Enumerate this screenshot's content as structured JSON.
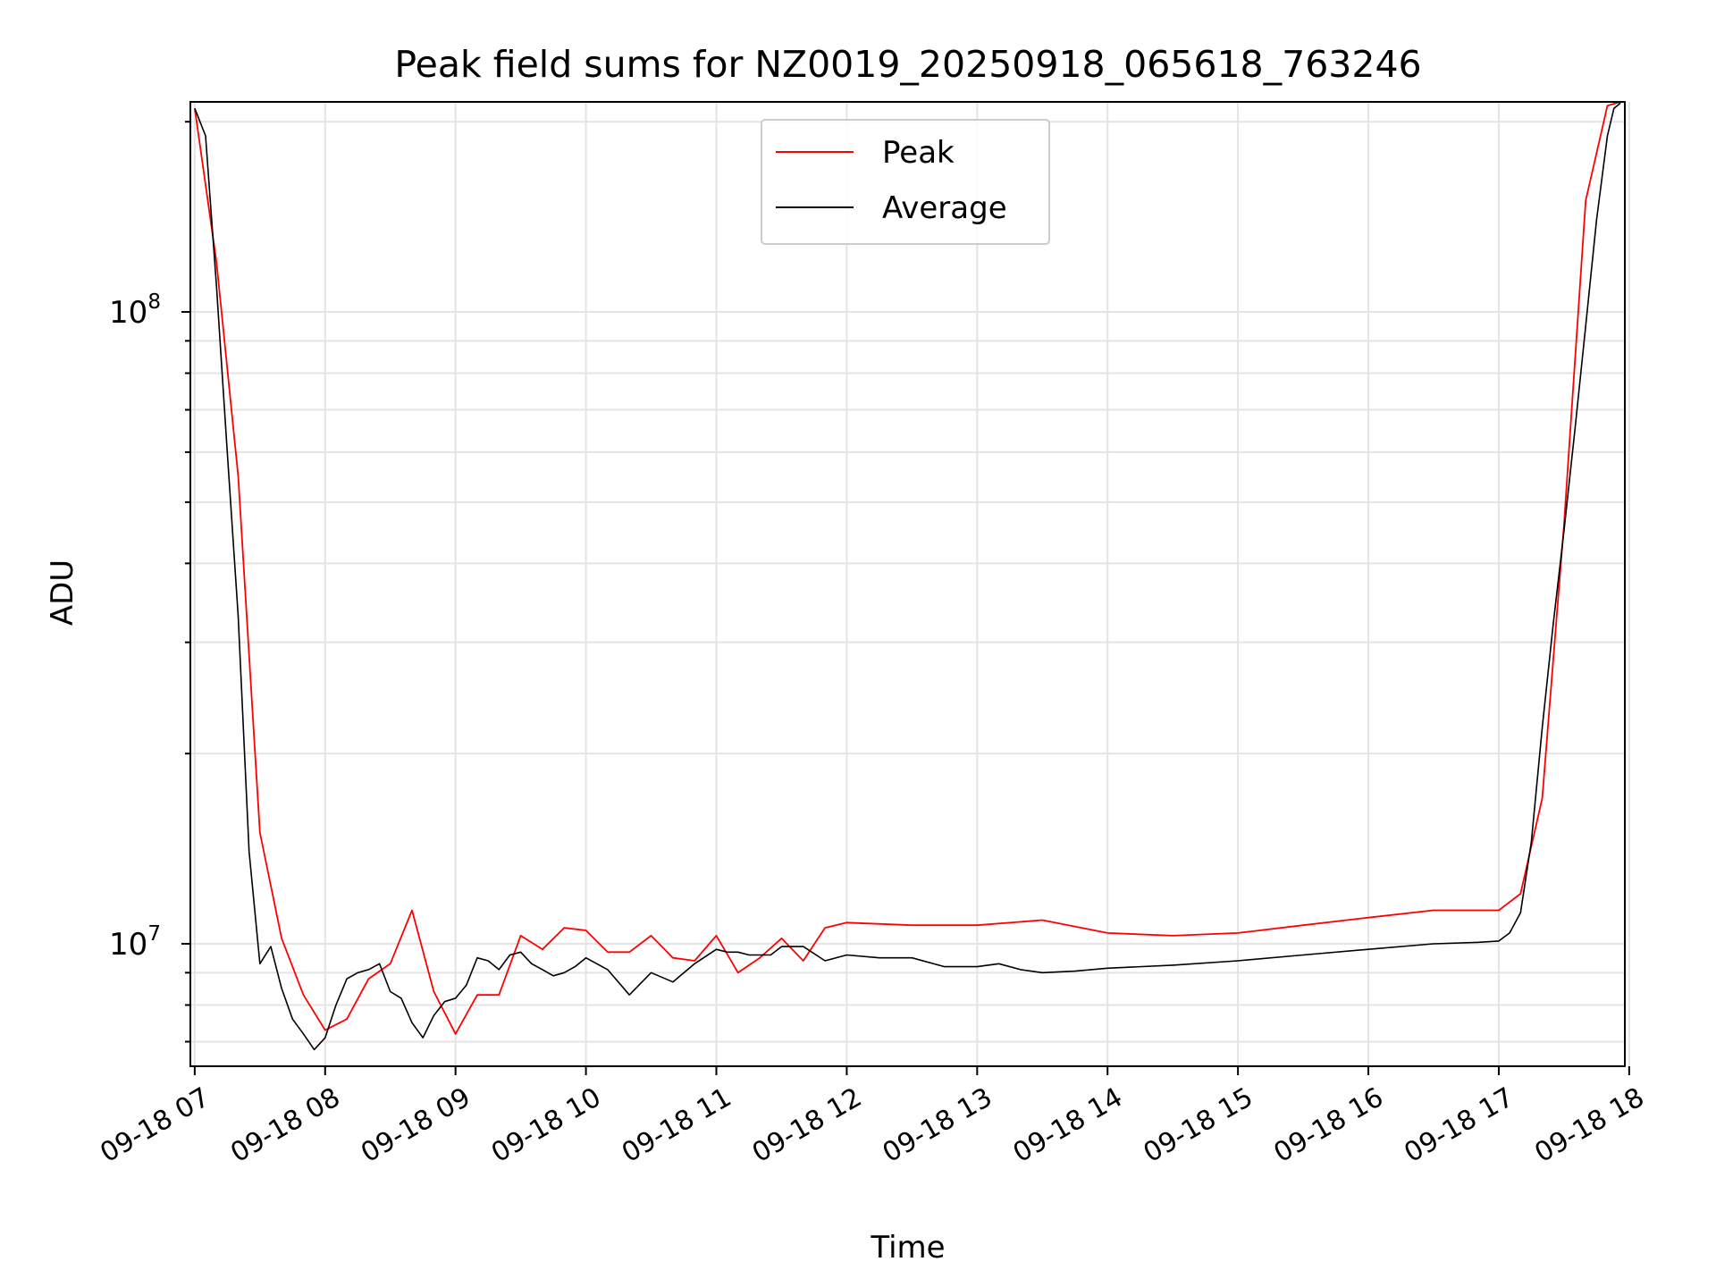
{
  "chart_data": {
    "type": "line",
    "title": "Peak field sums for NZ0019_20250918_065618_763246",
    "xlabel": "Time",
    "ylabel": "ADU",
    "yscale": "log",
    "grid": true,
    "legend_position": "upper center",
    "x_range": [
      "2025-09-18 06:58",
      "2025-09-18 17:58"
    ],
    "y_range": [
      6400000,
      215000000
    ],
    "x_ticks": [
      "09-18 07",
      "09-18 08",
      "09-18 09",
      "09-18 10",
      "09-18 11",
      "09-18 12",
      "09-18 13",
      "09-18 14",
      "09-18 15",
      "09-18 16",
      "09-18 17",
      "09-18 18"
    ],
    "y_tick_labels": [
      {
        "value": 10000000,
        "base": "10",
        "exp": "7"
      },
      {
        "value": 100000000,
        "base": "10",
        "exp": "8"
      }
    ],
    "series": [
      {
        "name": "Peak",
        "color": "#ff0000",
        "x": [
          "07:00",
          "07:10",
          "07:20",
          "07:30",
          "07:40",
          "07:50",
          "08:00",
          "08:10",
          "08:20",
          "08:30",
          "08:40",
          "08:50",
          "09:00",
          "09:10",
          "09:20",
          "09:30",
          "09:40",
          "09:50",
          "10:00",
          "10:10",
          "10:20",
          "10:30",
          "10:40",
          "10:50",
          "11:00",
          "11:10",
          "11:20",
          "11:30",
          "11:40",
          "11:50",
          "12:00",
          "12:30",
          "13:00",
          "13:30",
          "14:00",
          "14:30",
          "15:00",
          "15:30",
          "16:00",
          "16:30",
          "17:00",
          "17:10",
          "17:20",
          "17:30",
          "17:40",
          "17:50",
          "17:56"
        ],
        "y": [
          210000000,
          120000000,
          55000000,
          15000000,
          10200000,
          8300000,
          7300000,
          7600000,
          8800000,
          9300000,
          11300000,
          8400000,
          7200000,
          8300000,
          8300000,
          10300000,
          9800000,
          10600000,
          10500000,
          9700000,
          9700000,
          10300000,
          9500000,
          9400000,
          10300000,
          9000000,
          9500000,
          10200000,
          9400000,
          10600000,
          10800000,
          10700000,
          10700000,
          10900000,
          10400000,
          10300000,
          10400000,
          10700000,
          11000000,
          11300000,
          11300000,
          12000000,
          17000000,
          46000000,
          150000000,
          212000000,
          215000000
        ]
      },
      {
        "name": "Average",
        "color": "#000000",
        "x": [
          "07:00",
          "07:05",
          "07:10",
          "07:15",
          "07:20",
          "07:25",
          "07:30",
          "07:35",
          "07:40",
          "07:45",
          "07:50",
          "07:55",
          "08:00",
          "08:05",
          "08:10",
          "08:15",
          "08:20",
          "08:25",
          "08:30",
          "08:35",
          "08:40",
          "08:45",
          "08:50",
          "08:55",
          "09:00",
          "09:05",
          "09:10",
          "09:15",
          "09:20",
          "09:25",
          "09:30",
          "09:35",
          "09:40",
          "09:45",
          "09:50",
          "09:55",
          "10:00",
          "10:10",
          "10:20",
          "10:30",
          "10:40",
          "10:50",
          "11:00",
          "11:05",
          "11:10",
          "11:15",
          "11:20",
          "11:25",
          "11:30",
          "11:40",
          "11:50",
          "12:00",
          "12:15",
          "12:30",
          "12:45",
          "13:00",
          "13:10",
          "13:20",
          "13:30",
          "13:45",
          "14:00",
          "14:30",
          "15:00",
          "15:30",
          "16:00",
          "16:30",
          "16:50",
          "17:00",
          "17:05",
          "17:10",
          "17:15",
          "17:20",
          "17:25",
          "17:30",
          "17:35",
          "17:40",
          "17:45",
          "17:50",
          "17:53",
          "17:56"
        ],
        "y": [
          210000000,
          190000000,
          110000000,
          60000000,
          33000000,
          14000000,
          9300000,
          9900000,
          8500000,
          7600000,
          7200000,
          6800000,
          7100000,
          8000000,
          8800000,
          9000000,
          9100000,
          9300000,
          8400000,
          8200000,
          7500000,
          7100000,
          7700000,
          8100000,
          8200000,
          8600000,
          9500000,
          9400000,
          9100000,
          9600000,
          9700000,
          9300000,
          9100000,
          8900000,
          9000000,
          9200000,
          9500000,
          9100000,
          8300000,
          9000000,
          8700000,
          9300000,
          9800000,
          9700000,
          9700000,
          9600000,
          9600000,
          9600000,
          9900000,
          9900000,
          9400000,
          9600000,
          9500000,
          9500000,
          9200000,
          9200000,
          9300000,
          9100000,
          9000000,
          9050000,
          9150000,
          9250000,
          9400000,
          9600000,
          9800000,
          10000000,
          10050000,
          10100000,
          10400000,
          11200000,
          14500000,
          22000000,
          32000000,
          45000000,
          65000000,
          95000000,
          140000000,
          190000000,
          210000000,
          214000000
        ]
      }
    ]
  }
}
